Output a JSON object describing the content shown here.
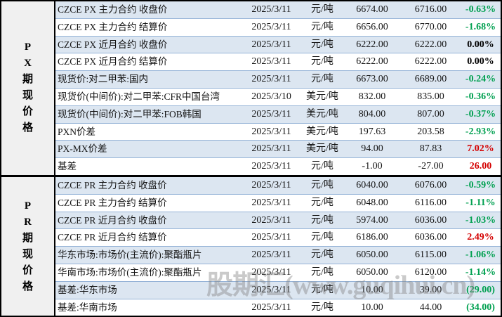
{
  "watermark": "股期汇(www.guqihui.cn)",
  "colors": {
    "row_alt_bg": "#dce6f1",
    "row_separator": "#95b3d7",
    "sidebar_bg": "#f0f0f0",
    "section_border": "#000000",
    "change_down_green": "#00a050",
    "change_up_red": "#d40000",
    "change_flat_black": "#000000"
  },
  "table": {
    "sections": [
      {
        "id": "px",
        "label": "PX期现价格",
        "label_chars": [
          "P",
          "X",
          "期",
          "现",
          "价",
          "格"
        ],
        "rows": [
          {
            "name": "CZCE PX 主力合约 收盘价",
            "date": "2025/3/11",
            "unit": "元/吨",
            "value1": "6674.00",
            "value2": "6716.00",
            "change": "-0.63%",
            "direction": "down"
          },
          {
            "name": "CZCE PX 主力合约 结算价",
            "date": "2025/3/11",
            "unit": "元/吨",
            "value1": "6656.00",
            "value2": "6770.00",
            "change": "-1.68%",
            "direction": "down"
          },
          {
            "name": "CZCE PX 近月合约 收盘价",
            "date": "2025/3/11",
            "unit": "元/吨",
            "value1": "6222.00",
            "value2": "6222.00",
            "change": "0.00%",
            "direction": "flat"
          },
          {
            "name": "CZCE PX 近月合约 结算价",
            "date": "2025/3/11",
            "unit": "元/吨",
            "value1": "6222.00",
            "value2": "6222.00",
            "change": "0.00%",
            "direction": "flat"
          },
          {
            "name": "现货价:对二甲苯:国内",
            "date": "2025/3/11",
            "unit": "元/吨",
            "value1": "6673.00",
            "value2": "6689.00",
            "change": "-0.24%",
            "direction": "down"
          },
          {
            "name": "现货价(中间价):对二甲苯:CFR中国台湾",
            "date": "2025/3/10",
            "unit": "美元/吨",
            "value1": "832.00",
            "value2": "835.00",
            "change": "-0.36%",
            "direction": "down"
          },
          {
            "name": "现货价(中间价):对二甲苯:FOB韩国",
            "date": "2025/3/11",
            "unit": "美元/吨",
            "value1": "804.00",
            "value2": "807.00",
            "change": "-0.37%",
            "direction": "down"
          },
          {
            "name": "PXN价差",
            "date": "2025/3/11",
            "unit": "美元/吨",
            "value1": "197.63",
            "value2": "203.58",
            "change": "-2.93%",
            "direction": "down"
          },
          {
            "name": "PX-MX价差",
            "date": "2025/3/11",
            "unit": "美元/吨",
            "value1": "94.00",
            "value2": "87.83",
            "change": "7.02%",
            "direction": "up"
          },
          {
            "name": "基差",
            "date": "2025/3/11",
            "unit": "元/吨",
            "value1": "-1.00",
            "value2": "-27.00",
            "change": "26.00",
            "direction": "up"
          }
        ]
      },
      {
        "id": "pr",
        "label": "PR期现价格",
        "label_chars": [
          "P",
          "R",
          "期",
          "现",
          "价",
          "格"
        ],
        "rows": [
          {
            "name": "CZCE PR 主力合约 收盘价",
            "date": "2025/3/11",
            "unit": "元/吨",
            "value1": "6040.00",
            "value2": "6076.00",
            "change": "-0.59%",
            "direction": "down"
          },
          {
            "name": "CZCE PR 主力合约 结算价",
            "date": "2025/3/11",
            "unit": "元/吨",
            "value1": "6048.00",
            "value2": "6116.00",
            "change": "-1.11%",
            "direction": "down"
          },
          {
            "name": "CZCE PR 近月合约 收盘价",
            "date": "2025/3/11",
            "unit": "元/吨",
            "value1": "5974.00",
            "value2": "6036.00",
            "change": "-1.03%",
            "direction": "down"
          },
          {
            "name": "CZCE PR 近月合约 结算价",
            "date": "2025/3/11",
            "unit": "元/吨",
            "value1": "6186.00",
            "value2": "6036.00",
            "change": "2.49%",
            "direction": "up"
          },
          {
            "name": "华东市场:市场价(主流价):聚酯瓶片",
            "date": "2025/3/11",
            "unit": "元/吨",
            "value1": "6050.00",
            "value2": "6115.00",
            "change": "-1.06%",
            "direction": "down"
          },
          {
            "name": "华南市场:市场价(主流价):聚酯瓶片",
            "date": "2025/3/11",
            "unit": "元/吨",
            "value1": "6050.00",
            "value2": "6120.00",
            "change": "-1.14%",
            "direction": "down"
          },
          {
            "name": "基差:华东市场",
            "date": "2025/3/11",
            "unit": "元/吨",
            "value1": "10.00",
            "value2": "39.00",
            "change": "(29.00)",
            "direction": "down"
          },
          {
            "name": "基差:华南市场",
            "date": "2025/3/11",
            "unit": "元/吨",
            "value1": "10.00",
            "value2": "44.00",
            "change": "(34.00)",
            "direction": "down"
          }
        ]
      }
    ]
  }
}
